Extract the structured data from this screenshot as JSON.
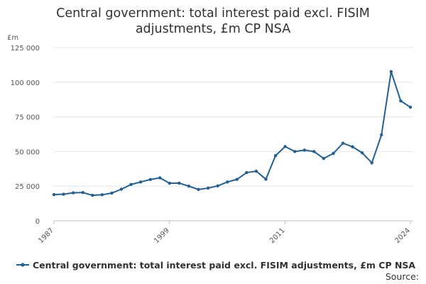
{
  "chart_data": {
    "type": "line",
    "title_line1": "Central government: total interest paid excl. FISIM",
    "title_line2": "adjustments, £m CP NSA",
    "ylabel": "£m",
    "xlabel": "",
    "ylim": [
      0,
      125000
    ],
    "y_ticks": [
      0,
      25000,
      50000,
      75000,
      100000,
      125000
    ],
    "y_tick_labels": [
      "0",
      "25 000",
      "50 000",
      "75 000",
      "100 000",
      "125 000"
    ],
    "x_range": [
      1987,
      2024
    ],
    "x_ticks": [
      1987,
      1999,
      2011,
      2024
    ],
    "x_tick_labels": [
      "1987",
      "1999",
      "2011",
      "2024"
    ],
    "grid": "horizontal",
    "legend_position": "bottom",
    "series": [
      {
        "name": "Central government: total interest paid excl. FISIM adjustments, £m CP NSA",
        "color": "#206095",
        "x": [
          1987,
          1988,
          1989,
          1990,
          1991,
          1992,
          1993,
          1994,
          1995,
          1996,
          1997,
          1998,
          1999,
          2000,
          2001,
          2002,
          2003,
          2004,
          2005,
          2006,
          2007,
          2008,
          2009,
          2010,
          2011,
          2012,
          2013,
          2014,
          2015,
          2016,
          2017,
          2018,
          2019,
          2020,
          2021,
          2022,
          2023,
          2024
        ],
        "values": [
          18900,
          19200,
          20200,
          20400,
          18400,
          18800,
          20000,
          22800,
          26200,
          28000,
          29800,
          31000,
          27100,
          27200,
          25000,
          22600,
          23600,
          25200,
          28000,
          29900,
          34800,
          35800,
          30000,
          47000,
          53600,
          50000,
          51000,
          50000,
          45000,
          48600,
          56000,
          53400,
          49000,
          41800,
          62000,
          107600,
          86500,
          82000
        ]
      }
    ]
  },
  "source_label": "Source:"
}
